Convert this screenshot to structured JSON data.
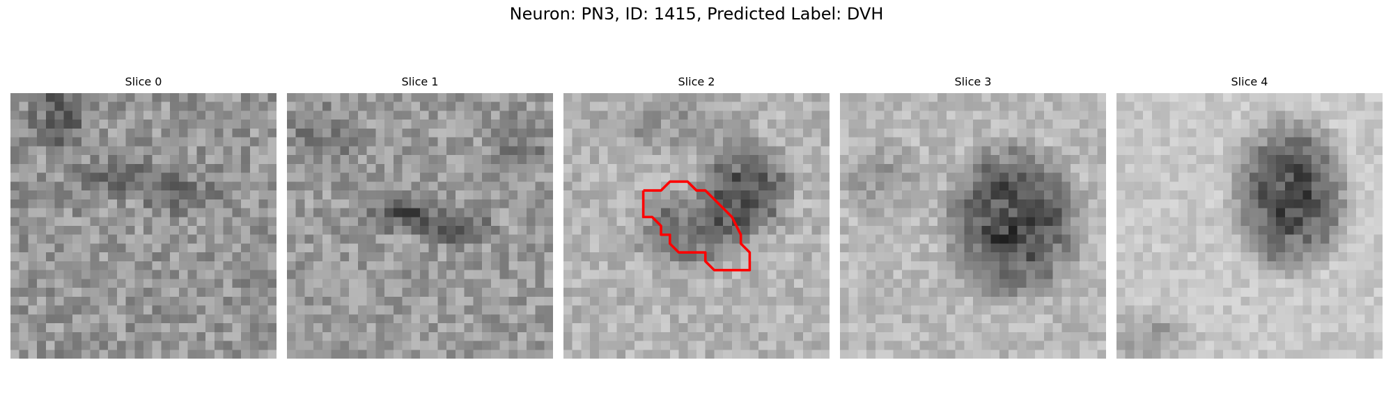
{
  "figure": {
    "title": "Neuron: PN3, ID: 1415, Predicted Label: DVH"
  },
  "colors": {
    "contour": "#ff0000",
    "background": "#ffffff"
  },
  "slices": [
    {
      "title": "Slice 0"
    },
    {
      "title": "Slice 1"
    },
    {
      "title": "Slice 2"
    },
    {
      "title": "Slice 3"
    },
    {
      "title": "Slice 4"
    }
  ]
}
